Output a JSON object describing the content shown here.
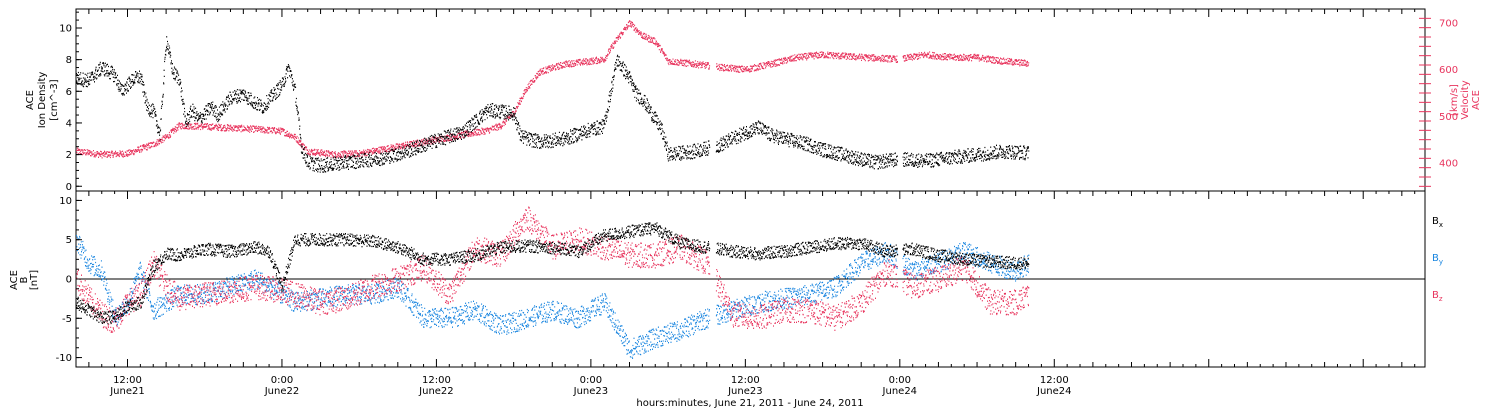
{
  "colors": {
    "black": "#000000",
    "pink": "#e8355e",
    "blue": "#1a86e0"
  },
  "xaxis": {
    "title": "hours:minutes, June 21, 2011 - June 24, 2011",
    "range_hours": [
      -16.0,
      88.8
    ],
    "ticks": [
      {
        "hour": -12,
        "time": "12:00",
        "date": "June21"
      },
      {
        "hour": 0,
        "time": "0:00",
        "date": "June22"
      },
      {
        "hour": 12,
        "time": "12:00",
        "date": "June22"
      },
      {
        "hour": 24,
        "time": "0:00",
        "date": "June23"
      },
      {
        "hour": 36,
        "time": "12:00",
        "date": "June23"
      },
      {
        "hour": 48,
        "time": "0:00",
        "date": "June24"
      },
      {
        "hour": 60,
        "time": "12:00",
        "date": "June24"
      }
    ]
  },
  "chart_data": [
    {
      "type": "scatter",
      "title": "",
      "ylabel": [
        "ACE",
        "Ion Density",
        "[cm^-3]"
      ],
      "ylim": [
        -0.3,
        11.2
      ],
      "yticks": [
        0,
        2,
        4,
        6,
        8,
        10
      ],
      "y2label": [
        "ACE",
        "Velocity",
        "[km/s]"
      ],
      "y2lim": [
        340,
        730
      ],
      "y2ticks": [
        400,
        500,
        600,
        700
      ],
      "series": [
        {
          "name": "Ion Density",
          "color": "#000000",
          "axis": "left",
          "points": [
            [
              -16,
              6.8
            ],
            [
              -15,
              6.7
            ],
            [
              -14,
              7.5
            ],
            [
              -13,
              7.0
            ],
            [
              -12.5,
              6.0
            ],
            [
              -11.5,
              6.8
            ],
            [
              -11,
              6.9
            ],
            [
              -10.5,
              5.0
            ],
            [
              -10,
              4.7
            ],
            [
              -9.5,
              3.3
            ],
            [
              -9,
              9.3
            ],
            [
              -8.5,
              7.2
            ],
            [
              -8,
              6.8
            ],
            [
              -7.5,
              4.0
            ],
            [
              -7,
              4.8
            ],
            [
              -6.5,
              4.2
            ],
            [
              -5.5,
              5.0
            ],
            [
              -5,
              4.5
            ],
            [
              -4,
              5.6
            ],
            [
              -3,
              5.8
            ],
            [
              -2,
              5.2
            ],
            [
              -1.5,
              5.0
            ],
            [
              -1,
              5.5
            ],
            [
              0,
              6.4
            ],
            [
              0.5,
              7.5
            ],
            [
              1,
              6.0
            ],
            [
              1.5,
              2.4
            ],
            [
              2,
              1.5
            ],
            [
              3,
              1.3
            ],
            [
              4,
              1.4
            ],
            [
              6,
              1.6
            ],
            [
              8,
              1.8
            ],
            [
              10,
              2.3
            ],
            [
              12,
              2.9
            ],
            [
              14,
              3.4
            ],
            [
              16,
              4.8
            ],
            [
              18,
              4.6
            ],
            [
              18.5,
              3.2
            ],
            [
              19,
              3.0
            ],
            [
              20,
              2.8
            ],
            [
              22,
              3.0
            ],
            [
              24,
              3.6
            ],
            [
              25,
              3.8
            ],
            [
              26,
              8.0
            ],
            [
              27,
              6.8
            ],
            [
              27.5,
              5.8
            ],
            [
              28,
              5.5
            ],
            [
              29,
              4.2
            ],
            [
              29.5,
              3.5
            ],
            [
              30,
              2.0
            ],
            [
              32,
              2.2
            ],
            [
              34,
              2.6
            ],
            [
              36,
              3.4
            ],
            [
              37,
              3.7
            ],
            [
              38,
              3.2
            ],
            [
              40,
              2.8
            ],
            [
              41,
              2.6
            ],
            [
              42,
              2.3
            ],
            [
              44,
              1.9
            ],
            [
              46,
              1.5
            ],
            [
              48,
              1.7
            ],
            [
              50,
              1.6
            ],
            [
              52,
              1.8
            ],
            [
              54,
              2.0
            ],
            [
              56,
              2.2
            ],
            [
              58,
              2.1
            ]
          ]
        },
        {
          "name": "Velocity",
          "color": "#e8355e",
          "axis": "right",
          "points": [
            [
              -16,
              425
            ],
            [
              -14,
              418
            ],
            [
              -12,
              420
            ],
            [
              -10,
              440
            ],
            [
              -9,
              455
            ],
            [
              -8,
              480
            ],
            [
              -6,
              478
            ],
            [
              -4,
              475
            ],
            [
              -2,
              472
            ],
            [
              0,
              468
            ],
            [
              1,
              455
            ],
            [
              2,
              425
            ],
            [
              4,
              418
            ],
            [
              6,
              420
            ],
            [
              8,
              430
            ],
            [
              10,
              440
            ],
            [
              12,
              450
            ],
            [
              14,
              460
            ],
            [
              16,
              470
            ],
            [
              17,
              480
            ],
            [
              18,
              508
            ],
            [
              19,
              560
            ],
            [
              20,
              595
            ],
            [
              22,
              612
            ],
            [
              24,
              618
            ],
            [
              25,
              622
            ],
            [
              26,
              665
            ],
            [
              27,
              700
            ],
            [
              28,
              672
            ],
            [
              29,
              660
            ],
            [
              30,
              618
            ],
            [
              32,
              612
            ],
            [
              34,
              605
            ],
            [
              36,
              600
            ],
            [
              38,
              612
            ],
            [
              40,
              626
            ],
            [
              42,
              632
            ],
            [
              44,
              628
            ],
            [
              46,
              625
            ],
            [
              48,
              622
            ],
            [
              50,
              632
            ],
            [
              52,
              626
            ],
            [
              54,
              626
            ],
            [
              56,
              618
            ],
            [
              58,
              613
            ]
          ]
        }
      ]
    },
    {
      "type": "scatter",
      "title": "",
      "ylabel": [
        "ACE",
        "B",
        "[nT]"
      ],
      "ylim": [
        -11.2,
        11.2
      ],
      "yticks": [
        -10,
        -5,
        0,
        5,
        10
      ],
      "legend_position": "right",
      "series": [
        {
          "name": "Bx",
          "legend_label": "B",
          "legend_sub": "x",
          "color": "#000000",
          "points": [
            [
              -16,
              -3
            ],
            [
              -14,
              -5
            ],
            [
              -13,
              -4.8
            ],
            [
              -12,
              -3.5
            ],
            [
              -11,
              -3
            ],
            [
              -10,
              1.5
            ],
            [
              -9,
              3.2
            ],
            [
              -8,
              3
            ],
            [
              -6,
              3.8
            ],
            [
              -4,
              3.5
            ],
            [
              -2,
              4
            ],
            [
              -1,
              3.5
            ],
            [
              0,
              -1
            ],
            [
              1,
              5
            ],
            [
              3,
              5
            ],
            [
              5,
              5
            ],
            [
              7,
              4.8
            ],
            [
              9,
              4
            ],
            [
              11,
              2.5
            ],
            [
              13,
              2.5
            ],
            [
              15,
              3
            ],
            [
              17,
              4
            ],
            [
              19,
              4.2
            ],
            [
              21,
              4
            ],
            [
              23,
              3.5
            ],
            [
              25,
              5.5
            ],
            [
              27,
              6
            ],
            [
              29,
              6.5
            ],
            [
              31,
              4.5
            ],
            [
              33,
              4
            ],
            [
              35,
              3.5
            ],
            [
              37,
              3.2
            ],
            [
              39,
              3.5
            ],
            [
              41,
              4
            ],
            [
              43,
              4.5
            ],
            [
              45,
              4.5
            ],
            [
              47,
              3.5
            ],
            [
              49,
              3.8
            ],
            [
              51,
              3
            ],
            [
              53,
              2.5
            ],
            [
              55,
              2.2
            ],
            [
              57,
              2
            ],
            [
              58,
              2
            ]
          ]
        },
        {
          "name": "By",
          "legend_label": "B",
          "legend_sub": "y",
          "color": "#1a86e0",
          "points": [
            [
              -16,
              5
            ],
            [
              -15,
              2
            ],
            [
              -14,
              1
            ],
            [
              -13,
              -5
            ],
            [
              -12,
              -3
            ],
            [
              -11,
              1
            ],
            [
              -10,
              -4
            ],
            [
              -9,
              -3
            ],
            [
              -8,
              -2
            ],
            [
              -6,
              -2
            ],
            [
              -4,
              -1
            ],
            [
              -2,
              0
            ],
            [
              0,
              -2
            ],
            [
              1,
              -3
            ],
            [
              3,
              -2.5
            ],
            [
              5,
              -2
            ],
            [
              7,
              -2
            ],
            [
              9,
              -1
            ],
            [
              11,
              -5
            ],
            [
              13,
              -5
            ],
            [
              15,
              -4
            ],
            [
              17,
              -6
            ],
            [
              19,
              -5
            ],
            [
              21,
              -4
            ],
            [
              23,
              -5
            ],
            [
              25,
              -3
            ],
            [
              27,
              -9
            ],
            [
              29,
              -7.5
            ],
            [
              31,
              -6.5
            ],
            [
              33,
              -5
            ],
            [
              35,
              -4
            ],
            [
              37,
              -3
            ],
            [
              39,
              -2.5
            ],
            [
              41,
              -2
            ],
            [
              43,
              -1
            ],
            [
              45,
              2
            ],
            [
              47,
              3.5
            ],
            [
              49,
              1
            ],
            [
              51,
              2
            ],
            [
              53,
              3.5
            ],
            [
              55,
              2
            ],
            [
              57,
              1
            ],
            [
              58,
              2
            ]
          ]
        },
        {
          "name": "Bz",
          "legend_label": "B",
          "legend_sub": "z",
          "color": "#e8355e",
          "points": [
            [
              -16,
              0
            ],
            [
              -15,
              -2.5
            ],
            [
              -14,
              -4.5
            ],
            [
              -13,
              -5.5
            ],
            [
              -12,
              -3
            ],
            [
              -11,
              -2
            ],
            [
              -10,
              2
            ],
            [
              -9,
              -1
            ],
            [
              -8,
              -2.5
            ],
            [
              -6,
              -2
            ],
            [
              -4,
              -1.5
            ],
            [
              -2,
              -1
            ],
            [
              0,
              -1.5
            ],
            [
              1,
              -2
            ],
            [
              3,
              -3
            ],
            [
              5,
              -2.5
            ],
            [
              7,
              -1
            ],
            [
              9,
              0
            ],
            [
              11,
              1.5
            ],
            [
              13,
              -2
            ],
            [
              15,
              4
            ],
            [
              17,
              3
            ],
            [
              19,
              8
            ],
            [
              21,
              4
            ],
            [
              23,
              5
            ],
            [
              25,
              4
            ],
            [
              27,
              3
            ],
            [
              29,
              3
            ],
            [
              31,
              4
            ],
            [
              33,
              2
            ],
            [
              35,
              -4.5
            ],
            [
              37,
              -5
            ],
            [
              39,
              -4
            ],
            [
              41,
              -4
            ],
            [
              43,
              -5
            ],
            [
              45,
              -3
            ],
            [
              47,
              1
            ],
            [
              49,
              -1
            ],
            [
              51,
              0
            ],
            [
              53,
              1.5
            ],
            [
              55,
              -3
            ],
            [
              57,
              -3
            ],
            [
              58,
              -2
            ]
          ]
        }
      ]
    }
  ]
}
